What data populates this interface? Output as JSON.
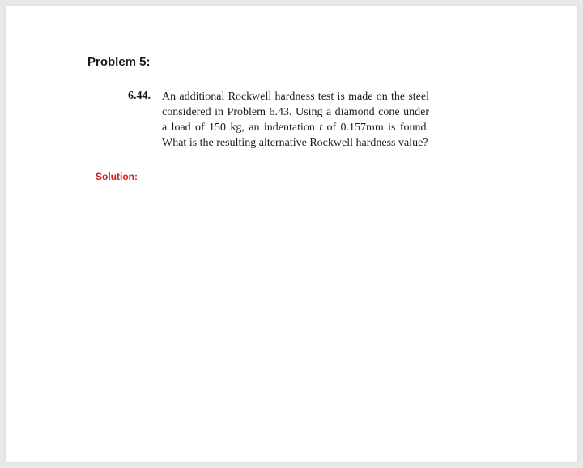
{
  "document": {
    "background_color": "#ffffff",
    "page_bg": "#e8e8e8"
  },
  "problem": {
    "heading": "Problem 5:",
    "heading_color": "#1a1a1a",
    "heading_fontsize": 15,
    "heading_weight": 700,
    "number": "6.44.",
    "number_weight": 700,
    "text_part1": "An additional Rockwell hardness test is made on the steel considered in Problem 6.43. Using a diamond cone under a load of 150 kg, an indentation ",
    "var": "t",
    "text_part2": " of 0.157mm is found. What is the resulting alternative Rockwell hardness value?",
    "text_fontsize": 14,
    "text_color": "#1a1a1a",
    "text_align": "justify"
  },
  "solution": {
    "label": "Solution:",
    "label_color": "#c8201e",
    "label_fontsize": 12,
    "label_weight": 700
  }
}
